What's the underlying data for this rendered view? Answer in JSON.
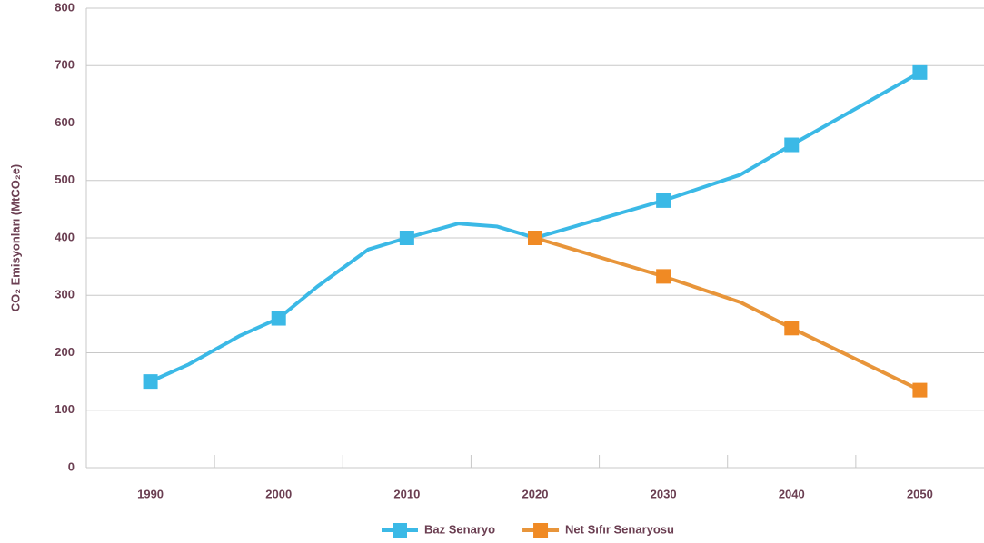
{
  "chart_data": {
    "type": "line",
    "y_label": "CO₂ Emisyonları (MtCO₂e)",
    "x": [
      1990,
      1993,
      1997,
      2000,
      2003,
      2007,
      2010,
      2014,
      2017,
      2020,
      2030,
      2036,
      2040,
      2050
    ],
    "series": [
      {
        "name": "Baz Senaryo",
        "color": "#3bb9e6",
        "values": [
          150,
          180,
          230,
          260,
          315,
          380,
          400,
          425,
          420,
          400,
          465,
          510,
          562,
          688
        ]
      },
      {
        "name": "Net Sıfır Senaryosu",
        "color": "#e8953a",
        "marker_color": "#f08a24",
        "values": [
          null,
          null,
          null,
          null,
          null,
          null,
          null,
          null,
          null,
          400,
          333,
          288,
          243,
          135
        ]
      }
    ],
    "xlim": [
      1985,
      2055
    ],
    "xticks": [
      1990,
      2000,
      2010,
      2020,
      2030,
      2040,
      2050
    ],
    "ylim": [
      0,
      800
    ],
    "yticks": [
      0,
      100,
      200,
      300,
      400,
      500,
      600,
      700,
      800
    ],
    "grid": true,
    "legend": "bottom"
  }
}
